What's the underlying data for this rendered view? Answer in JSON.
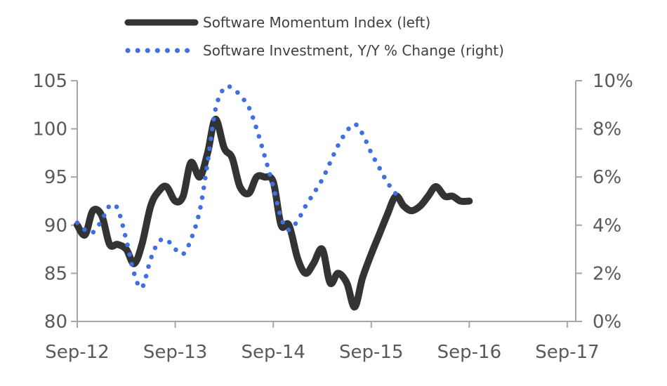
{
  "chart_data": {
    "type": "line",
    "grid": false,
    "legend_position": "top",
    "x_ticks": [
      "Sep-12",
      "Sep-13",
      "Sep-14",
      "Sep-15",
      "Sep-16",
      "Sep-17"
    ],
    "y_left": {
      "ticks": [
        "80",
        "85",
        "90",
        "95",
        "100",
        "105"
      ],
      "ylim": [
        80,
        105
      ]
    },
    "y_right": {
      "ticks": [
        "0%",
        "2%",
        "4%",
        "6%",
        "8%",
        "10%"
      ],
      "ylim": [
        0,
        10
      ]
    },
    "series": [
      {
        "name": "Software Momentum Index (left)",
        "axis": "left",
        "style": "solid",
        "color": "#333333",
        "x": [
          2012.67,
          2012.75,
          2012.83,
          2012.92,
          2013.0,
          2013.08,
          2013.17,
          2013.25,
          2013.33,
          2013.42,
          2013.5,
          2013.58,
          2013.67,
          2013.75,
          2013.83,
          2013.92,
          2014.0,
          2014.08,
          2014.17,
          2014.25,
          2014.33,
          2014.42,
          2014.5,
          2014.58,
          2014.67,
          2014.75,
          2014.83,
          2014.92,
          2015.0,
          2015.08,
          2015.17,
          2015.25,
          2015.33,
          2015.42,
          2015.5,
          2015.58,
          2015.67,
          2015.75,
          2015.83,
          2015.92,
          2016.0,
          2016.08,
          2016.17,
          2016.25,
          2016.33,
          2016.42,
          2016.5,
          2016.58,
          2016.67,
          2016.75,
          2016.83,
          2016.92,
          2017.0,
          2017.08,
          2017.17,
          2017.25,
          2017.33,
          2017.42,
          2017.5,
          2017.58,
          2017.67,
          2017.75,
          2017.83
        ],
        "values": [
          90.0,
          89.0,
          91.5,
          91.0,
          88.0,
          88.0,
          87.5,
          86.0,
          88.0,
          92.0,
          93.5,
          94.0,
          92.5,
          93.0,
          96.5,
          95.0,
          97.5,
          101.0,
          98.0,
          97.0,
          94.0,
          93.3,
          95.0,
          95.0,
          94.5,
          90.0,
          90.0,
          86.5,
          85.0,
          86.0,
          87.5,
          84.0,
          85.0,
          84.0,
          81.5,
          84.5,
          87.0,
          89.0,
          91.0,
          93.0,
          92.0,
          91.5,
          92.0,
          93.0,
          94.0,
          93.0,
          93.0,
          92.5,
          92.5,
          null,
          null,
          null,
          null,
          null,
          null,
          null,
          null,
          null,
          null,
          null,
          null,
          null,
          null
        ]
      },
      {
        "name": "Software Investment, Y/Y % Change (right)",
        "axis": "right",
        "style": "dotted",
        "color": "#3F6FE0",
        "x": [
          2012.67,
          2012.75,
          2012.83,
          2012.92,
          2013.0,
          2013.08,
          2013.17,
          2013.25,
          2013.33,
          2013.42,
          2013.5,
          2013.58,
          2013.67,
          2013.75,
          2013.83,
          2013.92,
          2014.0,
          2014.08,
          2014.17,
          2014.25,
          2014.33,
          2014.42,
          2014.5,
          2014.58,
          2014.67,
          2014.75,
          2014.83,
          2014.92,
          2015.0,
          2015.08,
          2015.17,
          2015.25,
          2015.33,
          2015.42,
          2015.5,
          2015.58,
          2015.67,
          2015.75,
          2015.83,
          2015.92,
          2016.0,
          2016.08,
          2016.17,
          2016.25,
          2016.33,
          2016.42,
          2016.5,
          2016.58,
          2016.67,
          2016.75
        ],
        "values": [
          4.1,
          3.8,
          3.7,
          4.2,
          4.8,
          4.7,
          3.4,
          2.0,
          1.4,
          2.6,
          3.3,
          3.4,
          3.0,
          2.8,
          3.4,
          4.6,
          6.6,
          8.8,
          9.7,
          9.7,
          9.4,
          8.9,
          8.0,
          6.9,
          5.6,
          4.3,
          3.8,
          4.2,
          4.8,
          5.3,
          5.9,
          6.6,
          7.3,
          7.9,
          8.2,
          7.8,
          7.0,
          6.4,
          5.8,
          5.3,
          null,
          null,
          null,
          null,
          null,
          null,
          null,
          null,
          null,
          null
        ]
      }
    ]
  }
}
